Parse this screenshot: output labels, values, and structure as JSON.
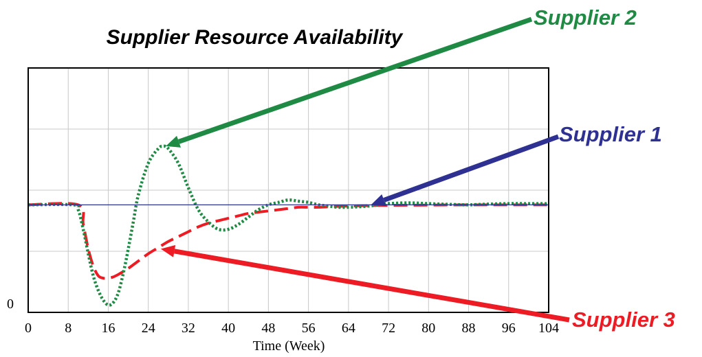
{
  "chart_data": {
    "type": "line",
    "title": "Supplier Resource Availability",
    "xlabel": "Time (Week)",
    "ylabel": "",
    "xlim": [
      0,
      104
    ],
    "ylim": [
      0,
      100
    ],
    "x_ticks": [
      "0",
      "8",
      "16",
      "24",
      "32",
      "40",
      "48",
      "56",
      "64",
      "72",
      "80",
      "88",
      "96",
      "104"
    ],
    "y_ticks": [
      "0"
    ],
    "grid": true,
    "series": [
      {
        "name": "Supplier 1",
        "color": "#2e3192",
        "style": "solid",
        "x": [
          0,
          104
        ],
        "y": [
          44,
          44
        ]
      },
      {
        "name": "Supplier 2",
        "color": "#1e8a44",
        "style": "dotted",
        "x": [
          0,
          9,
          10,
          11,
          12,
          13,
          14,
          15,
          16,
          17,
          18,
          19,
          20,
          21,
          22,
          24,
          26,
          27,
          28,
          30,
          32,
          34,
          36,
          38,
          40,
          42,
          44,
          46,
          48,
          50,
          52,
          54,
          56,
          58,
          60,
          62,
          64,
          66,
          68,
          70,
          72,
          76,
          80,
          84,
          88,
          92,
          96,
          100,
          104
        ],
        "y": [
          44,
          44,
          42,
          34,
          24,
          15,
          9,
          5,
          3,
          4,
          8,
          16,
          26,
          37,
          48,
          61,
          67,
          68,
          67,
          61,
          51,
          42,
          37,
          34,
          34,
          36,
          39,
          42,
          44,
          45,
          46,
          45.5,
          45,
          44,
          43.5,
          43,
          43,
          43.2,
          43.5,
          44,
          44.5,
          44.8,
          44.5,
          44.2,
          44,
          44.3,
          44.5,
          44.5,
          44.5
        ]
      },
      {
        "name": "Supplier 3",
        "color": "#ed1c24",
        "style": "dashed",
        "x": [
          0,
          10,
          11,
          12,
          13,
          14,
          15,
          16,
          17,
          18,
          20,
          22,
          24,
          26,
          28,
          30,
          32,
          34,
          36,
          38,
          40,
          42,
          44,
          46,
          48,
          50,
          52,
          54,
          56,
          58,
          60,
          62,
          64,
          66,
          68,
          72,
          80,
          88,
          96,
          104
        ],
        "y": [
          44,
          44,
          36,
          26,
          19,
          15,
          14,
          14,
          14.5,
          15.5,
          18,
          21,
          24,
          26.5,
          29,
          31,
          33,
          35,
          36.5,
          37.5,
          38.5,
          39.5,
          40.5,
          41,
          41.5,
          42,
          42.5,
          43,
          43,
          43,
          43.2,
          43.4,
          43.5,
          43.6,
          43.7,
          43.8,
          43.9,
          44,
          44,
          44
        ]
      }
    ],
    "annotations": [
      {
        "text": "Supplier 2",
        "color": "#1e8a44",
        "arrow_to_x": 27.5,
        "arrow_to_y": 68
      },
      {
        "text": "Supplier 1",
        "color": "#2e3192",
        "arrow_to_x": 68.5,
        "arrow_to_y": 44
      },
      {
        "text": "Supplier 3",
        "color": "#ed1c24",
        "arrow_to_x": 26.5,
        "arrow_to_y": 26
      }
    ]
  }
}
